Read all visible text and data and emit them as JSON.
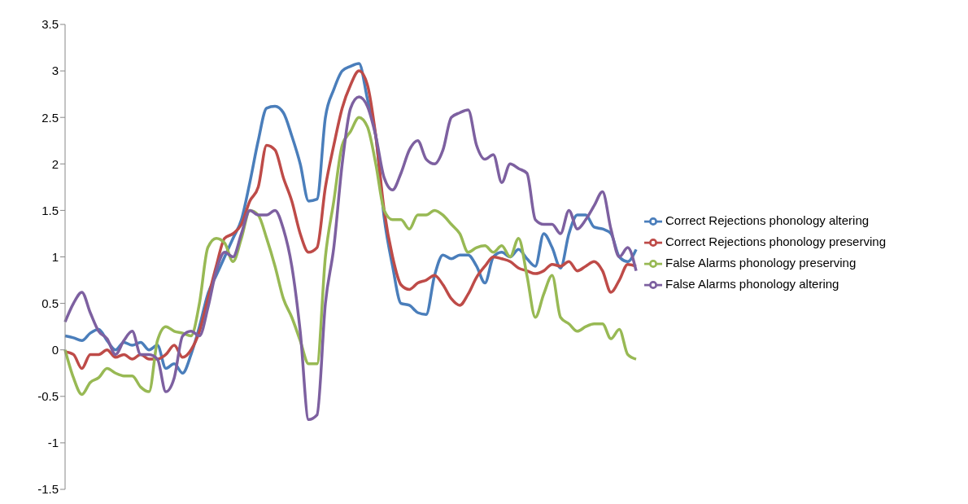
{
  "chart_data": {
    "type": "line",
    "categories": [
      null,
      null,
      null,
      null,
      null,
      null,
      null,
      null,
      null,
      null,
      null,
      null,
      null,
      null,
      null,
      null,
      null,
      null,
      null,
      null,
      null,
      null,
      null,
      null,
      null,
      null,
      null,
      null,
      null,
      null,
      null,
      null,
      null,
      null,
      null,
      null,
      null,
      null,
      null,
      null,
      null,
      null,
      null,
      null,
      null,
      null,
      null,
      null,
      null,
      null,
      null,
      null,
      null,
      null,
      null,
      null,
      null,
      null,
      null,
      null,
      null,
      null,
      null,
      null,
      null,
      null,
      null,
      null,
      null
    ],
    "series": [
      {
        "name": "Correct Rejections phonology altering",
        "color": "#4a7ebb",
        "values": [
          0.15,
          0.13,
          0.1,
          0.18,
          0.22,
          0.1,
          0.0,
          0.08,
          0.05,
          0.08,
          0.0,
          0.05,
          -0.2,
          -0.15,
          -0.25,
          -0.05,
          0.25,
          0.6,
          0.8,
          1.0,
          1.2,
          1.4,
          1.8,
          2.25,
          2.6,
          2.62,
          2.55,
          2.3,
          2.0,
          1.6,
          1.62,
          2.5,
          2.8,
          3.0,
          3.05,
          3.08,
          2.7,
          2.3,
          1.42,
          0.9,
          0.5,
          0.48,
          0.4,
          0.38,
          0.8,
          1.02,
          0.98,
          1.02,
          1.02,
          0.9,
          0.72,
          1.0,
          1.05,
          1.0,
          1.08,
          0.98,
          0.9,
          1.25,
          1.1,
          0.88,
          1.25,
          1.45,
          1.45,
          1.32,
          1.3,
          1.25,
          1.0,
          0.95,
          1.08
        ]
      },
      {
        "name": "Correct Rejections phonology preserving",
        "color": "#be4b48",
        "values": [
          -0.02,
          -0.05,
          -0.2,
          -0.05,
          -0.05,
          0.0,
          -0.08,
          -0.05,
          -0.1,
          -0.05,
          -0.1,
          -0.1,
          -0.05,
          0.05,
          -0.08,
          0.0,
          0.2,
          0.55,
          0.9,
          1.2,
          1.25,
          1.35,
          1.6,
          1.75,
          2.2,
          2.15,
          1.85,
          1.6,
          1.25,
          1.05,
          1.1,
          1.75,
          2.2,
          2.6,
          2.85,
          3.0,
          2.85,
          2.3,
          1.5,
          1.0,
          0.7,
          0.65,
          0.72,
          0.75,
          0.8,
          0.7,
          0.55,
          0.48,
          0.6,
          0.78,
          0.9,
          1.0,
          0.98,
          0.95,
          0.88,
          0.85,
          0.82,
          0.85,
          0.92,
          0.9,
          0.95,
          0.85,
          0.9,
          0.95,
          0.85,
          0.62,
          0.75,
          0.92,
          0.9
        ]
      },
      {
        "name": "False Alarms phonology preserving",
        "color": "#98b954",
        "values": [
          0.0,
          -0.3,
          -0.48,
          -0.35,
          -0.3,
          -0.2,
          -0.25,
          -0.28,
          -0.28,
          -0.4,
          -0.45,
          0.1,
          0.25,
          0.2,
          0.18,
          0.15,
          0.5,
          1.1,
          1.2,
          1.15,
          0.95,
          1.2,
          1.5,
          1.45,
          1.2,
          0.9,
          0.55,
          0.35,
          0.1,
          -0.15,
          -0.15,
          1.0,
          1.6,
          2.2,
          2.35,
          2.5,
          2.4,
          2.0,
          1.5,
          1.4,
          1.4,
          1.3,
          1.45,
          1.45,
          1.5,
          1.45,
          1.35,
          1.25,
          1.05,
          1.1,
          1.12,
          1.05,
          1.12,
          1.0,
          1.2,
          0.8,
          0.35,
          0.6,
          0.8,
          0.35,
          0.28,
          0.2,
          0.25,
          0.28,
          0.28,
          0.12,
          0.22,
          -0.05,
          -0.1
        ]
      },
      {
        "name": "False Alarms phonology altering",
        "color": "#7d60a0",
        "values": [
          0.3,
          0.5,
          0.62,
          0.4,
          0.2,
          0.12,
          -0.05,
          0.1,
          0.2,
          -0.05,
          -0.05,
          -0.1,
          -0.45,
          -0.3,
          0.15,
          0.2,
          0.15,
          0.45,
          0.85,
          1.05,
          1.0,
          1.25,
          1.5,
          1.45,
          1.45,
          1.5,
          1.3,
          0.9,
          0.2,
          -0.75,
          -0.7,
          0.5,
          1.1,
          2.0,
          2.6,
          2.72,
          2.62,
          2.3,
          1.85,
          1.72,
          1.9,
          2.15,
          2.25,
          2.05,
          2.0,
          2.15,
          2.5,
          2.55,
          2.58,
          2.2,
          2.05,
          2.1,
          1.8,
          2.0,
          1.95,
          1.9,
          1.4,
          1.35,
          1.35,
          1.25,
          1.5,
          1.3,
          1.4,
          1.55,
          1.7,
          1.3,
          1.0,
          1.1,
          0.85
        ]
      }
    ],
    "ylim": [
      -1.5,
      3.5
    ],
    "yticks": [
      -1.5,
      -1,
      -0.5,
      0,
      0.5,
      1,
      1.5,
      2,
      2.5,
      3,
      3.5
    ],
    "tick_labels": "y",
    "grid": false,
    "legend": "right",
    "marker": "none",
    "line_style": "solid"
  }
}
